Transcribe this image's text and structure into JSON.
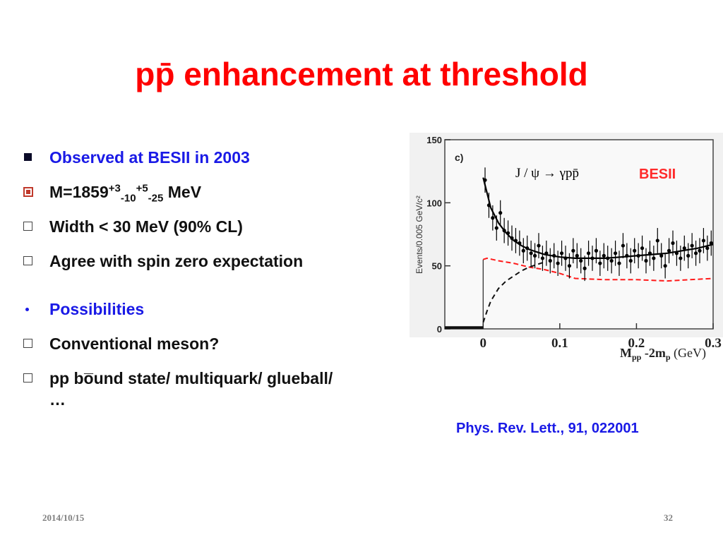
{
  "slide": {
    "title": "pp̄ enhancement at threshold",
    "bullets": [
      {
        "text": "Observed at BESII in 2003"
      },
      {
        "prefix": "M=1859",
        "sup1": "+3",
        "sub1": "-10",
        "sup2": "+5",
        "sub2": "-25",
        "suffix": " MeV"
      },
      {
        "text": "Width < 30 MeV (90% CL)"
      },
      {
        "text": "Agree with spin zero expectation"
      },
      {
        "text": "Possibilities"
      },
      {
        "text": "Conventional meson?"
      },
      {
        "text": "pp bo̅und state/ multiquark/ glueball/ …"
      }
    ],
    "reference": "Phys. Rev. Lett., 91, 022001",
    "footer": {
      "date": "2014/10/15",
      "page": "32"
    }
  },
  "figure": {
    "panel_label": "c)",
    "process_label": "J / ψ → γpp̄",
    "experiment_label": "BESII",
    "y_axis_label": "Events/0.005 GeV/c²",
    "x_axis_label_main": "M",
    "x_axis_label_sub": "pp",
    "x_axis_label_rest": " -2m",
    "x_axis_label_sub2": "p",
    "x_axis_label_unit": " (GeV)",
    "y_ticks": [
      "150",
      "100",
      "50",
      "0"
    ],
    "x_ticks": [
      "0",
      "0.1",
      "0.2",
      "0.3"
    ]
  },
  "chart_data": {
    "type": "scatter",
    "title": "",
    "xlabel": "M_pp -2m_p (GeV)",
    "ylabel": "Events/0.005 GeV/c²",
    "xlim": [
      -0.05,
      0.3
    ],
    "ylim": [
      0,
      150
    ],
    "x_ticks": [
      0,
      0.1,
      0.2,
      0.3
    ],
    "y_ticks": [
      0,
      50,
      100,
      150
    ],
    "series": [
      {
        "kind": "data_points",
        "x": [
          0.0025,
          0.0075,
          0.0125,
          0.0175,
          0.0225,
          0.0275,
          0.0325,
          0.0375,
          0.0425,
          0.0475,
          0.0525,
          0.0575,
          0.0625,
          0.0675,
          0.0725,
          0.0775,
          0.0825,
          0.0875,
          0.0925,
          0.0975,
          0.1025,
          0.1075,
          0.1125,
          0.1175,
          0.1225,
          0.1275,
          0.1325,
          0.1375,
          0.1425,
          0.1475,
          0.1525,
          0.1575,
          0.1625,
          0.1675,
          0.1725,
          0.1775,
          0.1825,
          0.1875,
          0.1925,
          0.1975,
          0.2025,
          0.2075,
          0.2125,
          0.2175,
          0.2225,
          0.2275,
          0.2325,
          0.2375,
          0.2425,
          0.2475,
          0.2525,
          0.2575,
          0.2625,
          0.2675,
          0.2725,
          0.2775,
          0.2825,
          0.2875,
          0.2925,
          0.2975
        ],
        "y": [
          118,
          98,
          88,
          80,
          92,
          78,
          76,
          72,
          70,
          68,
          62,
          64,
          60,
          58,
          66,
          56,
          60,
          54,
          58,
          52,
          60,
          56,
          50,
          62,
          58,
          54,
          48,
          60,
          56,
          62,
          52,
          58,
          56,
          54,
          60,
          52,
          66,
          58,
          54,
          62,
          58,
          64,
          54,
          60,
          56,
          70,
          58,
          50,
          62,
          68,
          60,
          56,
          64,
          58,
          66,
          60,
          62,
          70,
          64,
          68
        ],
        "yerr": 10
      },
      {
        "kind": "fit_total",
        "x": [
          0.0,
          0.005,
          0.01,
          0.02,
          0.03,
          0.04,
          0.05,
          0.06,
          0.08,
          0.1,
          0.12,
          0.14,
          0.16,
          0.18,
          0.2,
          0.22,
          0.24,
          0.26,
          0.28,
          0.3
        ],
        "y": [
          120,
          108,
          96,
          84,
          76,
          70,
          66,
          63,
          59,
          57,
          56,
          56,
          56,
          57,
          58,
          59,
          60,
          62,
          64,
          67
        ]
      },
      {
        "kind": "signal_component",
        "x": [
          0.0,
          0.005,
          0.02,
          0.04,
          0.06,
          0.08,
          0.1,
          0.12,
          0.16,
          0.2,
          0.24,
          0.27,
          0.3
        ],
        "y": [
          55,
          56,
          54,
          52,
          49,
          47,
          44,
          40,
          39,
          39,
          38,
          39,
          40
        ]
      },
      {
        "kind": "background_component",
        "x": [
          0.0,
          0.005,
          0.01,
          0.02,
          0.03,
          0.04,
          0.05,
          0.06,
          0.07,
          0.08
        ],
        "y": [
          5,
          14,
          22,
          32,
          38,
          42,
          46,
          49,
          51,
          53
        ]
      }
    ]
  }
}
